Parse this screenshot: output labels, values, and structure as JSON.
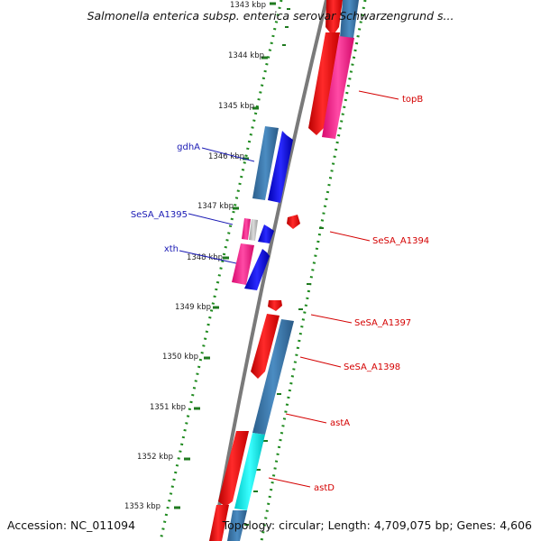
{
  "title": "Salmonella enterica subsp. enterica serovar Schwarzengrund s...",
  "footer": {
    "accession": "Accession: NC_011094",
    "topology": "Topology: circular; Length: 4,709,075 bp; Genes: 4,606"
  },
  "ticks": [
    "1343 kbp",
    "1344 kbp",
    "1345 kbp",
    "1346 kbp",
    "1347 kbp",
    "1348 kbp",
    "1349 kbp",
    "1350 kbp",
    "1351 kbp",
    "1352 kbp",
    "1353 kbp"
  ],
  "gene_labels": {
    "left": [
      {
        "name": "gdhA",
        "color": "#1a1ab4"
      },
      {
        "name": "SeSA_A1395",
        "color": "#1a1ab4"
      },
      {
        "name": "xth",
        "color": "#1a1ab4"
      }
    ],
    "right": [
      {
        "name": "topB",
        "color": "#d40000"
      },
      {
        "name": "SeSA_A1394",
        "color": "#d40000"
      },
      {
        "name": "SeSA_A1397",
        "color": "#d40000"
      },
      {
        "name": "SeSA_A1398",
        "color": "#d40000"
      },
      {
        "name": "astA",
        "color": "#d40000"
      },
      {
        "name": "astD",
        "color": "#d40000"
      }
    ]
  },
  "colors": {
    "backbone": "#7a7a7a",
    "gc_dots": "#1f8a1f",
    "forward_cds": "#ee1111",
    "reverse_cds": "#1010ee",
    "steel_blue": "#3a78aa",
    "pink": "#ff1f8e",
    "cyan": "#00f2f2"
  }
}
